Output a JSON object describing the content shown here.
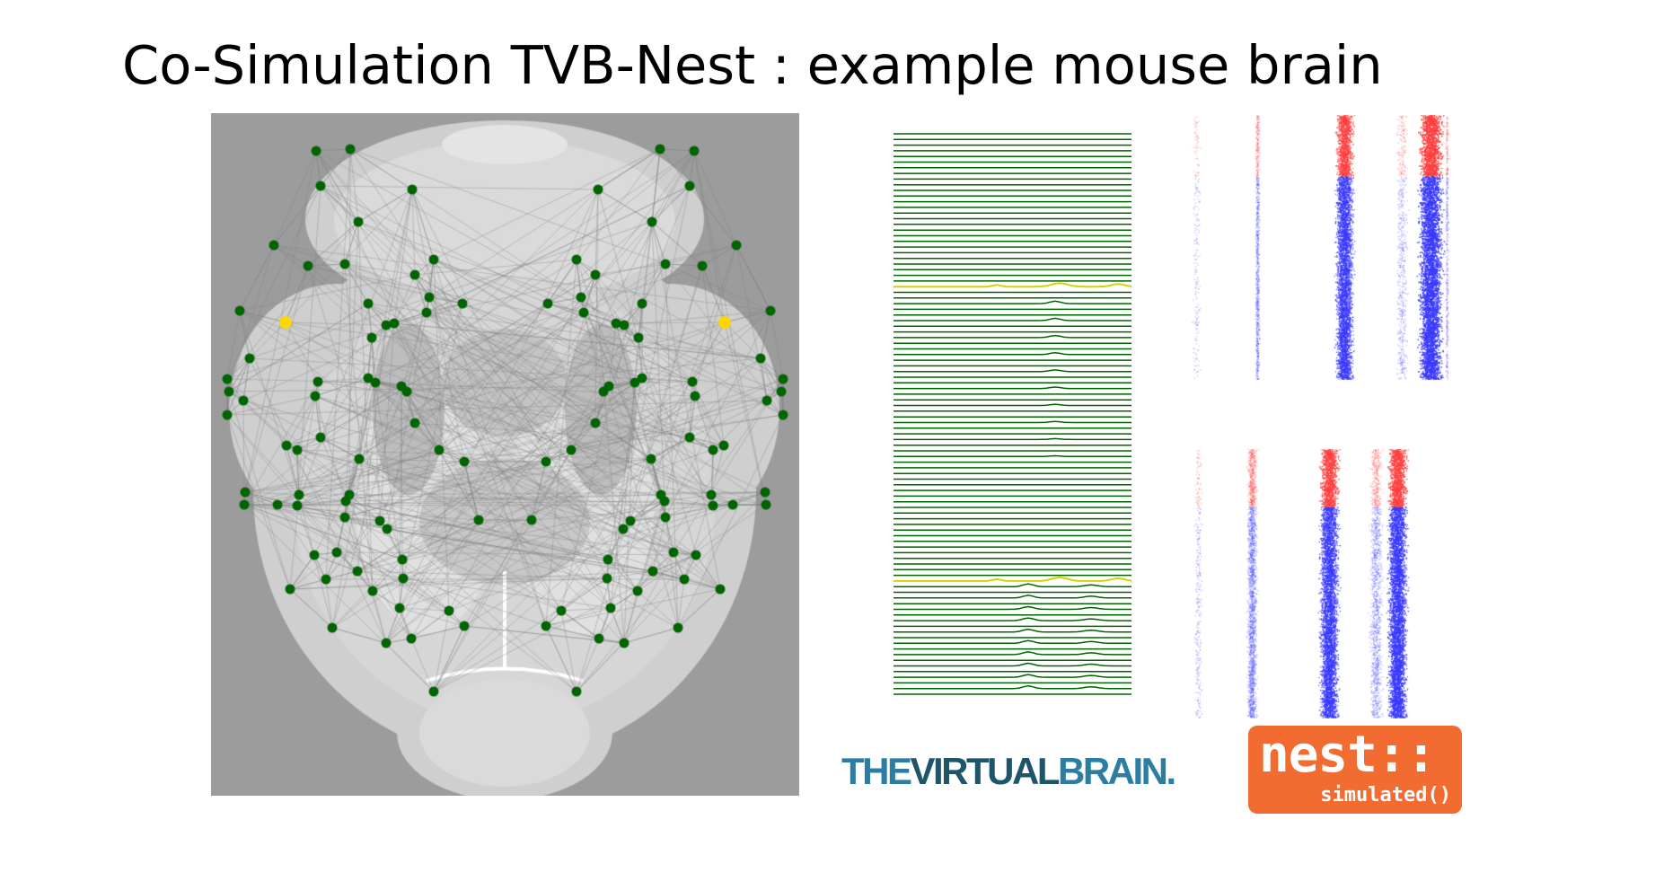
{
  "title": "Co-Simulation TVB-Nest : example mouse brain",
  "colors": {
    "background": "#ffffff",
    "brain_background": "#9c9c9c",
    "node": "#006400",
    "highlight_node": "#ffd700",
    "edge": "#808080",
    "trace": "#006400",
    "trace_highlight": "#d8d000",
    "spike_excitatory": "#3a3aff",
    "spike_inhibitory": "#ff4040",
    "tvb_primary": "#2b7ea1",
    "tvb_secondary": "#1e5568",
    "nest_orange": "#f26b30"
  },
  "icons": {
    "brain_network": "mouse-brain-connectome-icon",
    "traces": "region-activity-traces-icon",
    "raster": "spike-raster-icon"
  },
  "time_series": {
    "trace_count": 100,
    "highlighted_traces": [
      27,
      79
    ]
  },
  "logos": {
    "tvb": {
      "part1": "THE",
      "part2": "VIRTUAL",
      "part3": "BRAIN."
    },
    "nest": {
      "main": "nest::",
      "sub": "simulated()"
    }
  }
}
